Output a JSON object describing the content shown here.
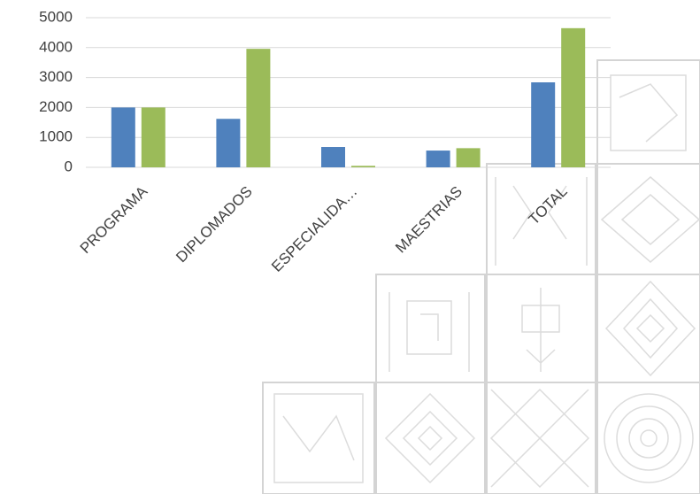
{
  "chart_data": {
    "type": "bar",
    "categories": [
      "PROGRAMA",
      "DIPLOMADOS",
      "ESPECIALIDA…",
      "MAESTRIAS",
      "TOTAL"
    ],
    "series": [
      {
        "color": "#4f81bd",
        "values": [
          2000,
          1620,
          680,
          560,
          2840
        ]
      },
      {
        "color": "#9bbb59",
        "values": [
          2000,
          3960,
          50,
          640,
          4650
        ]
      }
    ],
    "ylim": [
      0,
      5000
    ],
    "yticks": [
      0,
      1000,
      2000,
      3000,
      4000,
      5000
    ],
    "grid": true
  }
}
